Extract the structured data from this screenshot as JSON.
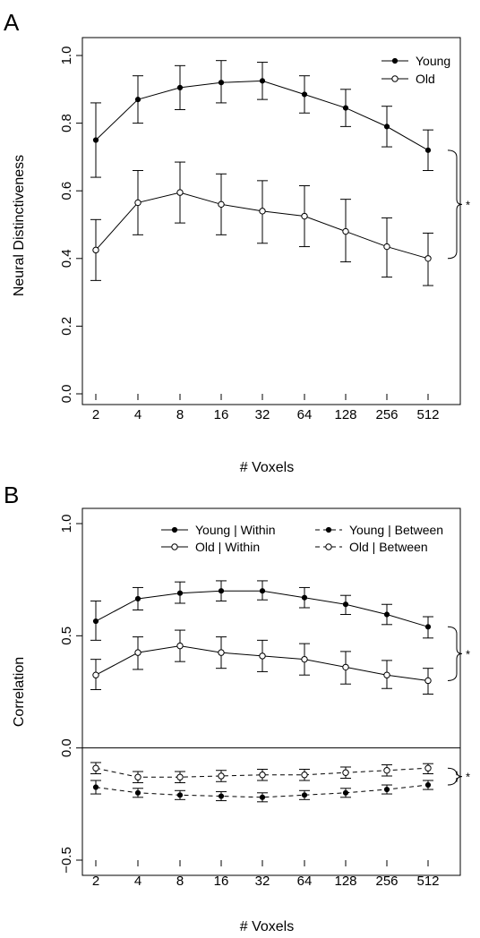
{
  "chart_data": [
    {
      "panel": "A",
      "type": "line",
      "xlabel": "# Voxels",
      "ylabel": "Neural Distinctiveness",
      "ylim": [
        0.0,
        1.0
      ],
      "yticks": [
        "0.0",
        "0.2",
        "0.4",
        "0.6",
        "0.8",
        "1.0"
      ],
      "categories": [
        "2",
        "4",
        "8",
        "16",
        "32",
        "64",
        "128",
        "256",
        "512"
      ],
      "legend_position": "top-right",
      "series": [
        {
          "name": "Young",
          "marker": "filled",
          "dash": "solid",
          "values": [
            0.75,
            0.87,
            0.905,
            0.92,
            0.925,
            0.885,
            0.845,
            0.79,
            0.72
          ],
          "error_low": [
            0.64,
            0.8,
            0.84,
            0.86,
            0.87,
            0.83,
            0.79,
            0.73,
            0.66
          ],
          "error_high": [
            0.86,
            0.94,
            0.97,
            0.985,
            0.98,
            0.94,
            0.9,
            0.85,
            0.78
          ]
        },
        {
          "name": "Old",
          "marker": "open",
          "dash": "solid",
          "values": [
            0.425,
            0.565,
            0.595,
            0.56,
            0.54,
            0.525,
            0.48,
            0.435,
            0.4
          ],
          "error_low": [
            0.335,
            0.47,
            0.505,
            0.47,
            0.445,
            0.435,
            0.39,
            0.345,
            0.32
          ],
          "error_high": [
            0.515,
            0.66,
            0.685,
            0.65,
            0.63,
            0.615,
            0.575,
            0.52,
            0.475
          ]
        }
      ],
      "annotations": [
        {
          "type": "brace",
          "from": 0.72,
          "to": 0.4,
          "label": "*"
        }
      ]
    },
    {
      "panel": "B",
      "type": "line",
      "xlabel": "# Voxels",
      "ylabel": "Correlation",
      "ylim": [
        -0.5,
        1.0
      ],
      "yticks": [
        "−0.5",
        "0.0",
        "0.5",
        "1.0"
      ],
      "categories": [
        "2",
        "4",
        "8",
        "16",
        "32",
        "64",
        "128",
        "256",
        "512"
      ],
      "legend_position": "top",
      "reference_line": 0.0,
      "series": [
        {
          "name": "Young | Within",
          "marker": "filled",
          "dash": "solid",
          "values": [
            0.565,
            0.665,
            0.69,
            0.7,
            0.7,
            0.67,
            0.64,
            0.595,
            0.54
          ],
          "error_low": [
            0.48,
            0.615,
            0.645,
            0.655,
            0.66,
            0.625,
            0.595,
            0.55,
            0.49
          ],
          "error_high": [
            0.655,
            0.715,
            0.74,
            0.745,
            0.745,
            0.715,
            0.68,
            0.64,
            0.585
          ]
        },
        {
          "name": "Young | Between",
          "marker": "filled",
          "dash": "dashed",
          "values": [
            -0.175,
            -0.2,
            -0.21,
            -0.215,
            -0.22,
            -0.21,
            -0.2,
            -0.185,
            -0.165
          ],
          "error_low": [
            -0.205,
            -0.22,
            -0.23,
            -0.235,
            -0.24,
            -0.23,
            -0.22,
            -0.205,
            -0.185
          ],
          "error_high": [
            -0.145,
            -0.18,
            -0.19,
            -0.195,
            -0.2,
            -0.19,
            -0.18,
            -0.165,
            -0.145
          ]
        },
        {
          "name": "Old | Within",
          "marker": "open",
          "dash": "solid",
          "values": [
            0.325,
            0.425,
            0.455,
            0.425,
            0.41,
            0.395,
            0.36,
            0.325,
            0.3
          ],
          "error_low": [
            0.26,
            0.35,
            0.385,
            0.355,
            0.34,
            0.325,
            0.285,
            0.265,
            0.24
          ],
          "error_high": [
            0.395,
            0.495,
            0.525,
            0.495,
            0.48,
            0.465,
            0.43,
            0.39,
            0.355
          ]
        },
        {
          "name": "Old | Between",
          "marker": "open",
          "dash": "dashed",
          "values": [
            -0.09,
            -0.13,
            -0.13,
            -0.125,
            -0.12,
            -0.12,
            -0.11,
            -0.1,
            -0.09
          ],
          "error_low": [
            -0.115,
            -0.155,
            -0.155,
            -0.15,
            -0.145,
            -0.145,
            -0.135,
            -0.125,
            -0.115
          ],
          "error_high": [
            -0.065,
            -0.105,
            -0.105,
            -0.1,
            -0.095,
            -0.095,
            -0.085,
            -0.075,
            -0.07
          ]
        }
      ],
      "annotations": [
        {
          "type": "brace",
          "from": 0.54,
          "to": 0.3,
          "label": "*"
        },
        {
          "type": "brace",
          "from": -0.09,
          "to": -0.165,
          "label": "*"
        }
      ]
    }
  ]
}
